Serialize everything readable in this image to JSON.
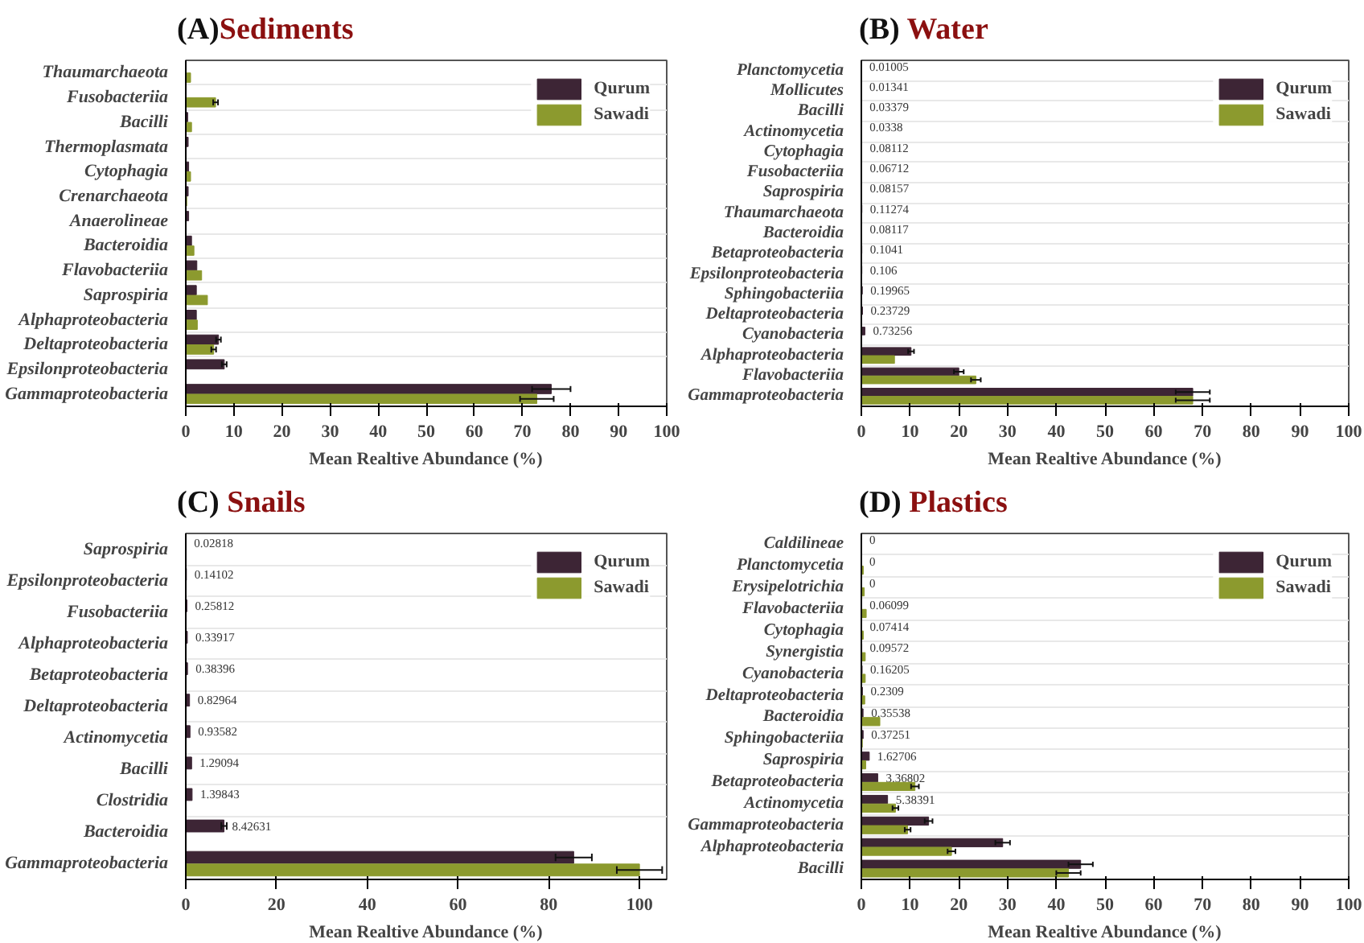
{
  "chart_data": [
    {
      "type": "bar",
      "orientation": "horizontal",
      "title": "(A)Sediments",
      "xlabel": "Mean Realtive Abundance (%)",
      "xlim": [
        0,
        100
      ],
      "xticks": [
        0,
        10,
        20,
        30,
        40,
        50,
        60,
        70,
        80,
        90,
        100
      ],
      "legend": "top right",
      "grid": "y",
      "categories": [
        "Thaumarchaeota",
        "Fusobacteriia",
        "Bacilli",
        "Thermoplasmata",
        "Cytophagia",
        "Crenarchaeota",
        "Anaerolineae",
        "Bacteroidia",
        "Flavobacteriia",
        "Saprospiria",
        "Alphaproteobacteria",
        "Deltaproteobacteria",
        "Epsilonproteobacteria",
        "Gammaproteobacteria"
      ],
      "series": [
        {
          "name": "Qurum",
          "color": "#3d2535",
          "values": [
            0,
            0,
            0.4,
            0.5,
            0.6,
            0.5,
            0.6,
            1.2,
            2.3,
            2.2,
            2.2,
            6.8,
            8.0,
            76
          ],
          "errors": [
            null,
            null,
            null,
            null,
            null,
            null,
            null,
            null,
            null,
            null,
            null,
            0.5,
            0.5,
            4
          ]
        },
        {
          "name": "Sawadi",
          "color": "#8c9a2e",
          "values": [
            1.0,
            6.2,
            1.2,
            0,
            1.0,
            0.2,
            null,
            1.7,
            3.3,
            4.5,
            2.4,
            5.8,
            0,
            73
          ],
          "errors": [
            null,
            0.5,
            null,
            null,
            null,
            null,
            null,
            null,
            null,
            null,
            null,
            0.5,
            null,
            3.5
          ]
        }
      ]
    },
    {
      "type": "bar",
      "orientation": "horizontal",
      "title": "(B) Water",
      "xlabel": "Mean Realtive Abundance (%)",
      "xlim": [
        0,
        100
      ],
      "xticks": [
        0,
        10,
        20,
        30,
        40,
        50,
        60,
        70,
        80,
        90,
        100
      ],
      "legend": "top right",
      "grid": "y",
      "categories": [
        "Planctomycetia",
        "Mollicutes",
        "Bacilli",
        "Actinomycetia",
        "Cytophagia",
        "Fusobacteriia",
        "Saprospiria",
        "Thaumarchaeota",
        "Bacteroidia",
        "Betaproteobacteria",
        "Epsilonproteobacteria",
        "Sphingobacteriia",
        "Deltaproteobacteria",
        "Cyanobacteria",
        "Alphaproteobacteria",
        "Flavobacteriia",
        "Gammaproteobacteria"
      ],
      "series": [
        {
          "name": "Qurum",
          "color": "#3d2535",
          "values": [
            0.01005,
            0.01341,
            0.03379,
            0.0338,
            0.08112,
            0.06712,
            0.08157,
            0.11274,
            0.08117,
            0.1041,
            0.106,
            0.19965,
            0.23729,
            0.73256,
            10.2,
            20,
            68
          ],
          "errors": [
            null,
            null,
            null,
            null,
            null,
            null,
            null,
            null,
            null,
            null,
            null,
            null,
            null,
            null,
            0.6,
            1,
            3.5
          ],
          "value_labels": [
            "0.01005",
            "0.01341",
            "0.03379",
            "0.0338",
            "0.08112",
            "0.06712",
            "0.08157",
            "0.11274",
            "0.08117",
            "0.1041",
            "0.106",
            "0.19965",
            "0.23729",
            "0.73256",
            null,
            null,
            null
          ]
        },
        {
          "name": "Sawadi",
          "color": "#8c9a2e",
          "values": [
            0,
            0,
            0,
            0,
            0,
            0,
            0,
            0,
            0,
            0,
            0,
            0,
            0,
            0,
            6.8,
            23.5,
            68
          ],
          "errors": [
            null,
            null,
            null,
            null,
            null,
            null,
            null,
            null,
            null,
            null,
            null,
            null,
            null,
            null,
            null,
            1,
            3.5
          ]
        }
      ]
    },
    {
      "type": "bar",
      "orientation": "horizontal",
      "title": "(C) Snails",
      "xlabel": "Mean Realtive Abundance (%)",
      "xlim": [
        0,
        106
      ],
      "xticks": [
        0,
        20,
        40,
        60,
        80,
        100
      ],
      "legend": "top right",
      "grid": "y",
      "categories": [
        "Saprospiria",
        "Epsilonproteobacteria",
        "Fusobacteriia",
        "Alphaproteobacteria",
        "Betaproteobacteria",
        "Deltaproteobacteria",
        "Actinomycetia",
        "Bacilli",
        "Clostridia",
        "Bacteroidia",
        "Gammaproteobacteria"
      ],
      "series": [
        {
          "name": "Qurum",
          "color": "#3d2535",
          "values": [
            0.02818,
            0.14102,
            0.25812,
            0.33917,
            0.38396,
            0.82964,
            0.93582,
            1.29094,
            1.39843,
            8.42631,
            85.5
          ],
          "errors": [
            null,
            null,
            null,
            null,
            null,
            null,
            null,
            null,
            null,
            0.6,
            4
          ],
          "value_labels": [
            "0.02818",
            "0.14102",
            "0.25812",
            "0.33917",
            "0.38396",
            "0.82964",
            "0.93582",
            "1.29094",
            "1.39843",
            "8.42631",
            null
          ]
        },
        {
          "name": "Sawadi",
          "color": "#8c9a2e",
          "values": [
            0,
            0,
            0,
            0,
            0,
            0,
            0,
            0,
            0,
            0,
            100
          ],
          "errors": [
            null,
            null,
            null,
            null,
            null,
            null,
            null,
            null,
            null,
            null,
            5
          ]
        }
      ]
    },
    {
      "type": "bar",
      "orientation": "horizontal",
      "title": "(D) Plastics",
      "xlabel": "Mean Realtive Abundance (%)",
      "xlim": [
        0,
        100
      ],
      "xticks": [
        0,
        10,
        20,
        30,
        40,
        50,
        60,
        70,
        80,
        90,
        100
      ],
      "legend": "top right",
      "grid": "y",
      "categories": [
        "Caldilineae",
        "Planctomycetia",
        "Erysipelotrichia",
        "Flavobacteriia",
        "Cytophagia",
        "Synergistia",
        "Cyanobacteria",
        "Deltaproteobacteria",
        "Bacteroidia",
        "Sphingobacteriia",
        "Saprospiria",
        "Betaproteobacteria",
        "Actinomycetia",
        "Gammaproteobacteria",
        "Alphaproteobacteria",
        "Bacilli"
      ],
      "series": [
        {
          "name": "Qurum",
          "color": "#3d2535",
          "values": [
            0,
            0,
            0,
            0.06099,
            0.07414,
            0.09572,
            0.16205,
            0.2309,
            0.35538,
            0.37251,
            1.62706,
            3.36802,
            5.38391,
            13.8,
            29,
            45
          ],
          "errors": [
            null,
            null,
            null,
            null,
            null,
            null,
            null,
            null,
            null,
            null,
            null,
            null,
            null,
            0.8,
            1.5,
            2.5
          ],
          "value_labels": [
            "0",
            "0",
            "0",
            "0.06099",
            "0.07414",
            "0.09572",
            "0.16205",
            "0.2309",
            "0.35538",
            "0.37251",
            "1.62706",
            "3.36802",
            "5.38391",
            null,
            null,
            null
          ]
        },
        {
          "name": "Sawadi",
          "color": "#8c9a2e",
          "values": [
            null,
            0.4,
            0.6,
            1.0,
            0.4,
            0.8,
            0.8,
            0.7,
            3.8,
            0.2,
            0.9,
            11,
            7,
            9.5,
            18.5,
            42.5
          ],
          "errors": [
            null,
            null,
            null,
            null,
            null,
            null,
            null,
            null,
            null,
            null,
            null,
            0.8,
            0.6,
            0.6,
            0.8,
            2.5
          ]
        }
      ]
    }
  ]
}
